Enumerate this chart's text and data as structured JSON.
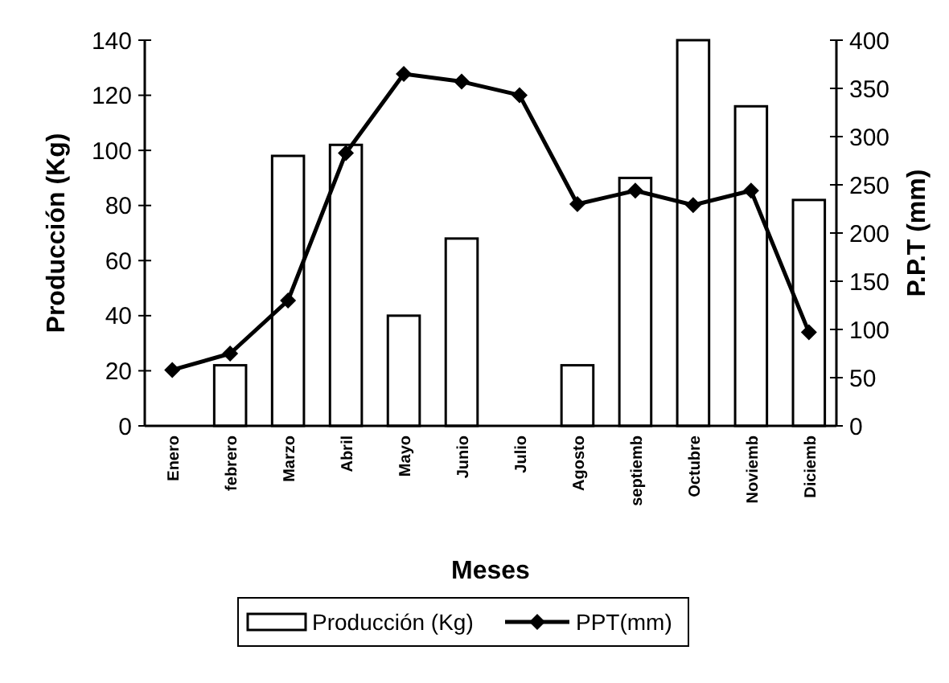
{
  "chart_data": {
    "type": "bar",
    "xlabel": "Meses",
    "ylabel": "Producción (Kg)",
    "y2label": "P.P.T (mm)",
    "categories": [
      "Enero",
      "febrero",
      "Marzo",
      "Abril",
      "Mayo",
      "Junio",
      "Julio",
      "Agosto",
      "septiemb",
      "Octubre",
      "Noviemb",
      "Diciemb"
    ],
    "series": [
      {
        "name": "Producción (Kg)",
        "color": "#ffffff",
        "values": [
          0,
          22,
          98,
          102,
          40,
          68,
          0,
          22,
          90,
          140,
          116,
          82
        ]
      },
      {
        "name": "PPT(mm)",
        "type": "line",
        "axis": "y2",
        "color": "#000000",
        "marker": "diamond",
        "values": [
          58,
          75,
          130,
          283,
          365,
          357,
          343,
          230,
          244,
          229,
          244,
          97
        ]
      }
    ],
    "ylim": [
      0,
      140
    ],
    "yticks": [
      0,
      20,
      40,
      60,
      80,
      100,
      120,
      140
    ],
    "y2lim": [
      0,
      400
    ],
    "y2ticks": [
      0,
      50,
      100,
      150,
      200,
      250,
      300,
      350,
      400
    ],
    "legend": "bottom",
    "grid": false
  }
}
